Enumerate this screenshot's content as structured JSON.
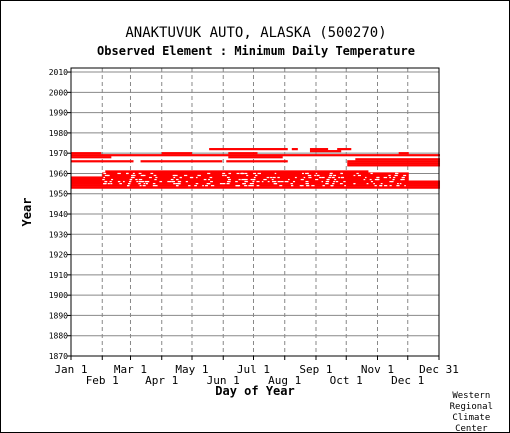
{
  "station_title": "ANAKTUVUK AUTO, ALASKA   (500270)",
  "element_title": "Observed Element : Minimum Daily Temperature",
  "credit_lines": [
    "Western",
    "Regional",
    "Climate",
    "Center"
  ],
  "colors": {
    "data": "#ff0000",
    "grid": "#888888",
    "axis": "#000000"
  },
  "chart_data": {
    "type": "scatter",
    "title": "Observed Element : Minimum Daily Temperature",
    "xlabel": "Day of Year",
    "ylabel": "Year",
    "xlim": [
      1,
      366
    ],
    "ylim": [
      1870,
      2012
    ],
    "grid": true,
    "x_ticks_upper": [
      {
        "label": "Jan 1",
        "day": 1
      },
      {
        "label": "Mar 1",
        "day": 60
      },
      {
        "label": "May 1",
        "day": 121
      },
      {
        "label": "Jul 1",
        "day": 182
      },
      {
        "label": "Sep 1",
        "day": 244
      },
      {
        "label": "Nov 1",
        "day": 305
      },
      {
        "label": "Dec 31",
        "day": 366
      }
    ],
    "x_ticks_lower": [
      {
        "label": "Feb 1",
        "day": 32
      },
      {
        "label": "Apr 1",
        "day": 91
      },
      {
        "label": "Jun 1",
        "day": 152
      },
      {
        "label": "Aug 1",
        "day": 213
      },
      {
        "label": "Oct 1",
        "day": 274
      },
      {
        "label": "Dec 1",
        "day": 335
      }
    ],
    "y_ticks": [
      1870,
      1880,
      1890,
      1900,
      1910,
      1920,
      1930,
      1940,
      1950,
      1960,
      1970,
      1980,
      1990,
      2000,
      2010
    ],
    "series": [
      {
        "record_segments": [
          {
            "year": 1970,
            "start_day": 1,
            "end_day": 30
          },
          {
            "year": 1970,
            "start_day": 91,
            "end_day": 120
          },
          {
            "year": 1970,
            "start_day": 157,
            "end_day": 185
          },
          {
            "year": 1970,
            "start_day": 326,
            "end_day": 335
          },
          {
            "year": 1969,
            "start_day": 1,
            "end_day": 366
          },
          {
            "year": 1972,
            "start_day": 138,
            "end_day": 215
          },
          {
            "year": 1972,
            "start_day": 220,
            "end_day": 225
          },
          {
            "year": 1972,
            "start_day": 238,
            "end_day": 255
          },
          {
            "year": 1972,
            "start_day": 265,
            "end_day": 278
          },
          {
            "year": 1971,
            "start_day": 238,
            "end_day": 268
          },
          {
            "year": 1968,
            "start_day": 1,
            "end_day": 40
          },
          {
            "year": 1968,
            "start_day": 157,
            "end_day": 210
          },
          {
            "year": 1967,
            "start_day": 283,
            "end_day": 366
          },
          {
            "year": 1966,
            "start_day": 1,
            "end_day": 62
          },
          {
            "year": 1966,
            "start_day": 70,
            "end_day": 150
          },
          {
            "year": 1966,
            "start_day": 155,
            "end_day": 215
          },
          {
            "year": 1966,
            "start_day": 275,
            "end_day": 366
          },
          {
            "year": 1965,
            "start_day": 275,
            "end_day": 366
          },
          {
            "year": 1964,
            "start_day": 275,
            "end_day": 366
          },
          {
            "year": 1961,
            "start_day": 35,
            "end_day": 295
          },
          {
            "year": 1960,
            "start_day": 32,
            "end_day": 335
          },
          {
            "year": 1959,
            "start_day": 32,
            "end_day": 335
          },
          {
            "year": 1958,
            "start_day": 1,
            "end_day": 335
          },
          {
            "year": 1957,
            "start_day": 1,
            "end_day": 335
          },
          {
            "year": 1956,
            "start_day": 1,
            "end_day": 366
          },
          {
            "year": 1955,
            "start_day": 1,
            "end_day": 366
          },
          {
            "year": 1954,
            "start_day": 1,
            "end_day": 366
          },
          {
            "year": 1953,
            "start_day": 1,
            "end_day": 366
          }
        ]
      }
    ]
  }
}
